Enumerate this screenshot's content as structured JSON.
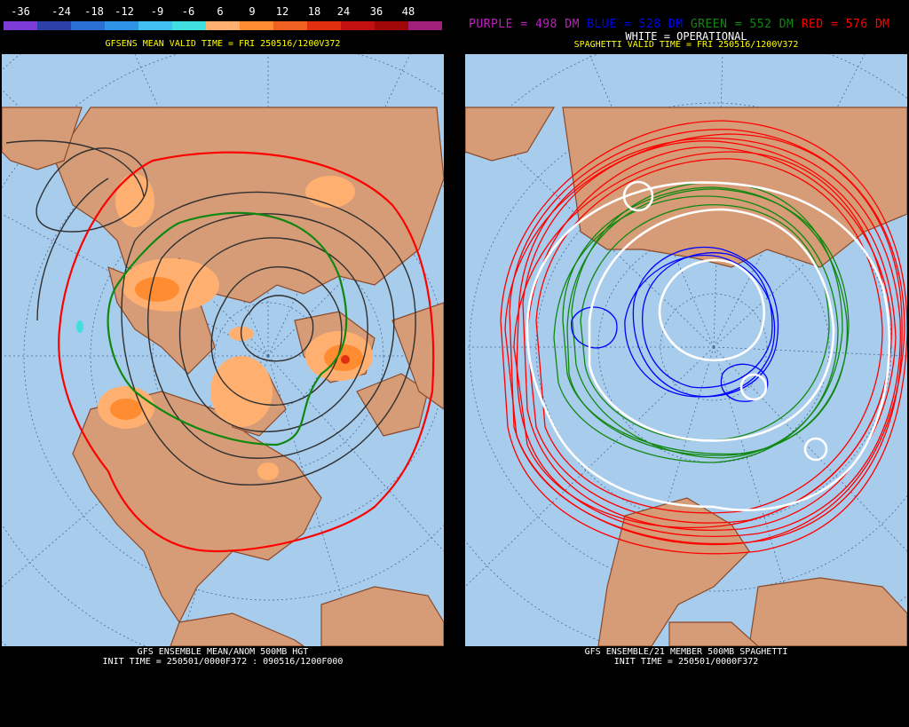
{
  "left": {
    "scale_labels": [
      "-36",
      "-24",
      "-18",
      "-12",
      "-9",
      "-6",
      "6",
      "9",
      "12",
      "18",
      "24",
      "36",
      "48"
    ],
    "scale_colors": [
      "#7a3bd6",
      "#2d3fa8",
      "#2a6fd4",
      "#2f93e8",
      "#3fc0f0",
      "#40e0e0",
      "#ffb070",
      "#ff8c30",
      "#f06020",
      "#e03010",
      "#c01010",
      "#a00808",
      "#a0207a"
    ],
    "valid_time": "GFSENS MEAN VALID TIME = FRI 250516/1200V372",
    "bottom_title": "GFS ENSEMBLE MEAN/ANOM 500MB HGT",
    "bottom_init": "INIT TIME = 250501/0000F372 : 090516/1200F000"
  },
  "right": {
    "legend": {
      "purple": "PURPLE = 498 DM",
      "blue": "BLUE = 528 DM",
      "green": "GREEN = 552 DM",
      "red": "RED = 576 DM"
    },
    "operational": "WHITE = OPERATIONAL",
    "valid_time": "SPAGHETTI VALID TIME = FRI 250516/1200V372",
    "bottom_title": "GFS ENSEMBLE/21 MEMBER 500MB SPAGHETTI",
    "bottom_init": "INIT TIME = 250501/0000F372"
  },
  "colors": {
    "ocean": "#a8ccec",
    "land": "#d69c78",
    "border": "#8a4a2a",
    "grid": "#4a6a98",
    "contour": "#303030",
    "anom_light": "#ffb070",
    "anom_mid": "#ff8c30",
    "anom_dark": "#e03010",
    "cyan": "#40e0e0",
    "purple": "#c020c0",
    "blue": "#0000ff",
    "green": "#108810",
    "red": "#ff0000",
    "white": "#ffffff",
    "valid_text": "#ffff00"
  }
}
